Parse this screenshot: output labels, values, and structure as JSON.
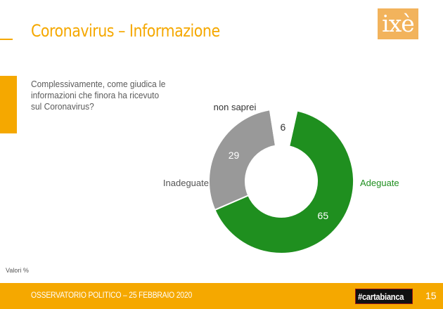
{
  "header": {
    "title": "Coronavirus – Informazione",
    "logo_text": "ixè"
  },
  "question": "Complessivamente, come giudica le informazioni che finora ha ricevuto sul Coronavirus?",
  "note": "Valori %",
  "footer": {
    "text": "OSSERVATORIO POLITICO – 25 FEBBRAIO 2020",
    "badge": "#cartabianca",
    "page": "15"
  },
  "colors": {
    "accent": "#F5A800",
    "adeguate": "#1F8F1F",
    "inadeguate": "#999999",
    "non_saprei": "#FFFFFF",
    "label_text": "#555555"
  },
  "chart_data": {
    "type": "pie",
    "donut": true,
    "categories": [
      "Adeguate",
      "Inadeguate",
      "non saprei"
    ],
    "values": [
      65,
      29,
      6
    ],
    "value_labels": [
      "65",
      "29",
      "6"
    ]
  }
}
